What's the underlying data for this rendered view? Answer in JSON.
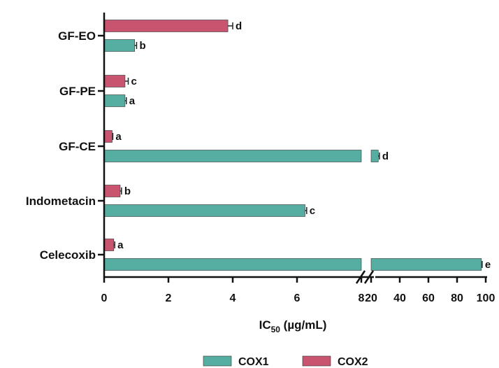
{
  "chart_data": {
    "type": "bar",
    "orientation": "horizontal",
    "categories": [
      "GF-EO",
      "GF-PE",
      "GF-CE",
      "Indometacin",
      "Celecoxib"
    ],
    "series": [
      {
        "name": "COX2",
        "color": "#c8546f",
        "values": [
          3.85,
          0.65,
          0.25,
          0.5,
          0.3
        ],
        "errors": [
          0.15,
          0.1,
          0.02,
          0.04,
          0.03
        ],
        "significance": [
          "d",
          "c",
          "a",
          "b",
          "a"
        ]
      },
      {
        "name": "COX1",
        "color": "#55aea1",
        "values": [
          0.95,
          0.65,
          25,
          6.25,
          97
        ],
        "errors": [
          0.06,
          0.04,
          0.8,
          0.05,
          0.5
        ],
        "significance": [
          "b",
          "a",
          "d",
          "c",
          "e"
        ]
      }
    ],
    "xlabel": "IC",
    "xlabel_sub": "50",
    "xlabel_unit": " (µg/mL)",
    "x_axis_break": {
      "after": 8,
      "resume": 20
    },
    "x_segments": [
      {
        "range": [
          0,
          8
        ],
        "ticks": [
          0,
          2,
          4,
          6,
          8
        ]
      },
      {
        "range": [
          10,
          100
        ],
        "ticks": [
          20,
          40,
          60,
          80,
          100
        ]
      }
    ],
    "legend": {
      "placement": "bottom-center",
      "entries": [
        "COX1",
        "COX2"
      ]
    }
  }
}
